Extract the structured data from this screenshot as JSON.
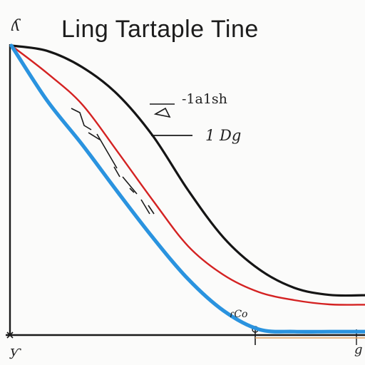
{
  "chart_data": {
    "type": "line",
    "title": "Ling Tartaple Tine",
    "xlabel": "",
    "ylabel": "",
    "grid": false,
    "legend": "none",
    "annotations": [
      "-1a1sh",
      "1 Dg"
    ],
    "axis_scribbles": {
      "y_corner": "ʎ",
      "origin": "ƴ",
      "x_end": "g",
      "mark": "ɾCo"
    },
    "xlim": [
      0,
      10
    ],
    "ylim": [
      0,
      10
    ],
    "series": [
      {
        "color": "#151515",
        "x": [
          0,
          1,
          2,
          3,
          4,
          5,
          6,
          7,
          8,
          9,
          10
        ],
        "y": [
          10,
          9.82,
          9.25,
          8.3,
          6.85,
          4.95,
          3.3,
          2.2,
          1.55,
          1.3,
          1.29
        ]
      },
      {
        "color": "#d42222",
        "x": [
          0,
          1,
          2,
          3,
          4,
          5,
          6,
          7,
          8,
          9,
          10
        ],
        "y": [
          10,
          9.05,
          7.95,
          6.3,
          4.6,
          3.0,
          2.0,
          1.4,
          1.12,
          0.97,
          0.96
        ]
      },
      {
        "color": "#2a93df",
        "x": [
          0,
          1,
          2,
          3,
          4,
          5,
          6,
          7,
          8,
          9,
          10
        ],
        "y": [
          10,
          8.1,
          6.55,
          4.9,
          3.3,
          1.85,
          0.75,
          0.1,
          0.02,
          0.02,
          0.02
        ]
      }
    ],
    "colors": {
      "axis": "#1a1a1a",
      "background": "#fbfbfa"
    }
  }
}
